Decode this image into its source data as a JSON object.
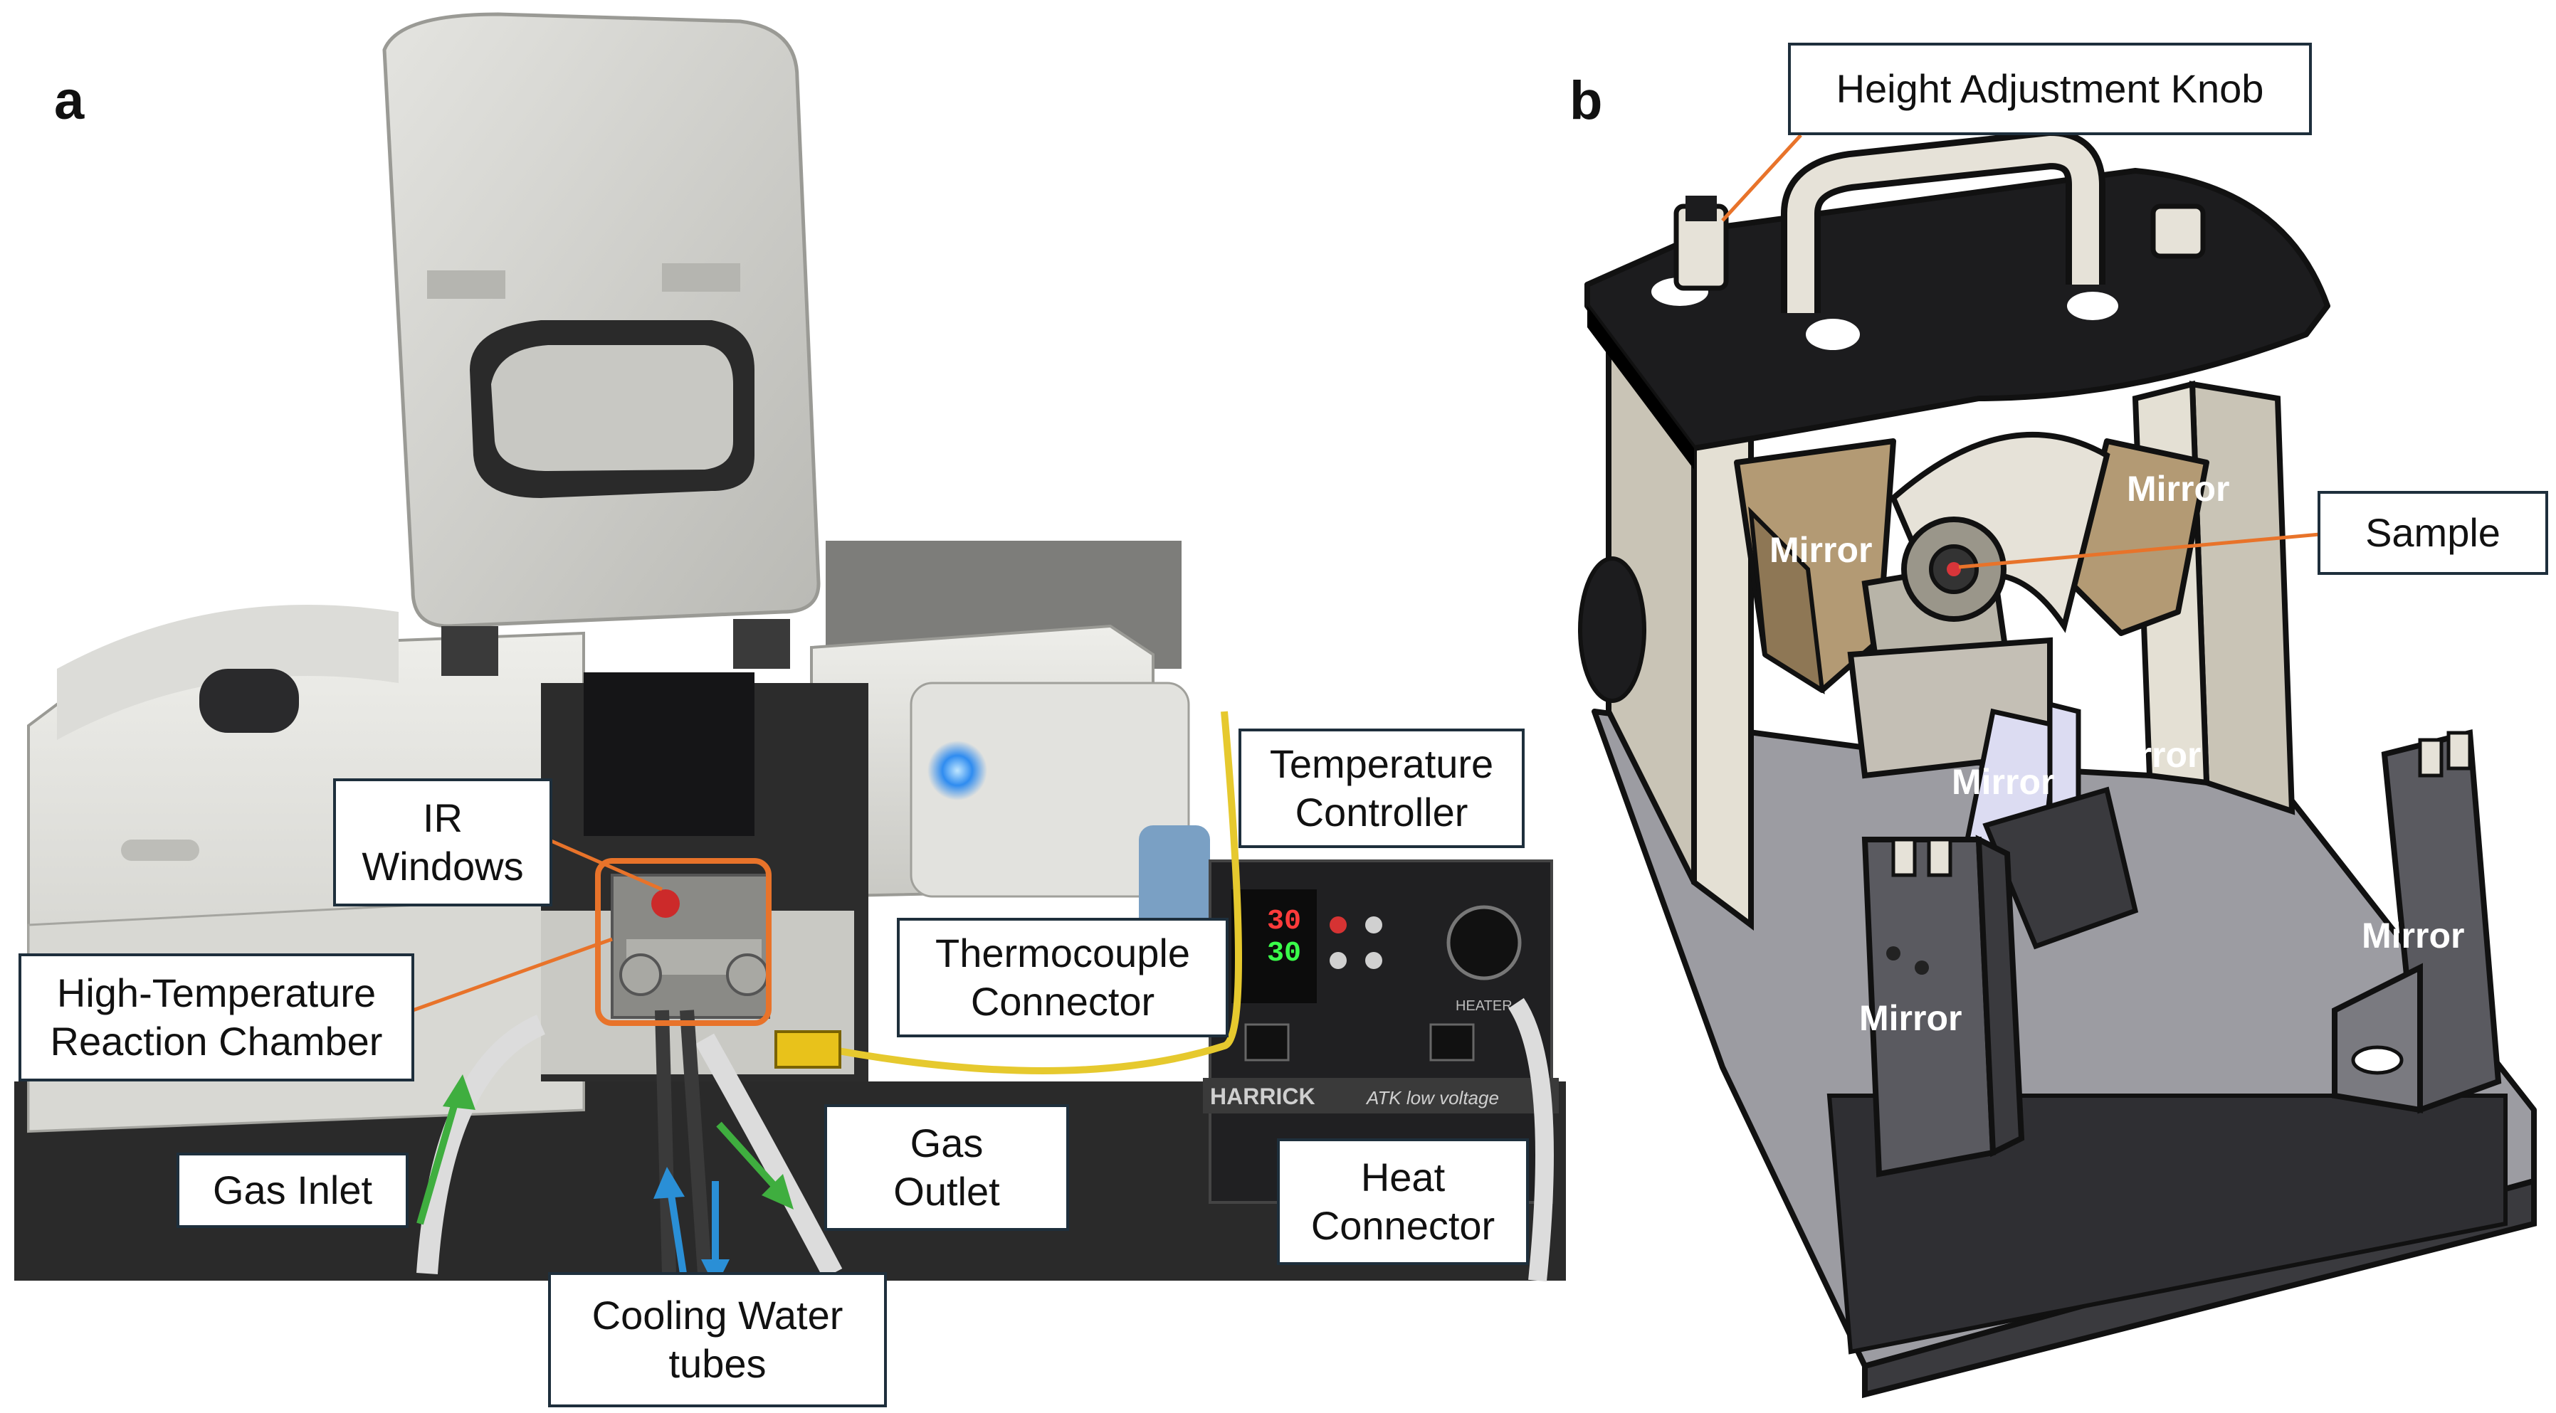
{
  "panel_a": {
    "letter": "a",
    "labels": {
      "ir_windows": "IR\nWindows",
      "temperature_controller": "Temperature\nController",
      "high_temperature_reaction_chamber": "High-Temperature\nReaction Chamber",
      "thermocouple_connector": "Thermocouple\nConnector",
      "gas_inlet": "Gas Inlet",
      "gas_outlet": "Gas\nOutlet",
      "heat_connector": "Heat\nConnector",
      "cooling_water_tubes": "Cooling Water\ntubes"
    },
    "controller_display": {
      "pv": "30",
      "sv": "30",
      "brand": "HARRICK",
      "model": "ATK low voltage",
      "heater_label": "HEATER"
    },
    "colors": {
      "callout_border": "#1e2f3c",
      "chamber_highlight": "#e8732a",
      "leader_line": "#e8732a",
      "gas_arrow": "#3fae3f",
      "water_arrow": "#2a8fd6"
    }
  },
  "panel_b": {
    "letter": "b",
    "labels": {
      "height_adjustment_knob": "Height Adjustment Knob",
      "sample": "Sample"
    },
    "mirror_labels": [
      "Mirror",
      "Mirror",
      "Mirror",
      "Mirror",
      "Mirror",
      "Mirror"
    ],
    "colors": {
      "top_plate": "#1c1c1e",
      "frame": "#c9c4b6",
      "mirror_gold": "#b39a74",
      "base": "#5a5a60",
      "leader_line": "#e8732a"
    }
  }
}
